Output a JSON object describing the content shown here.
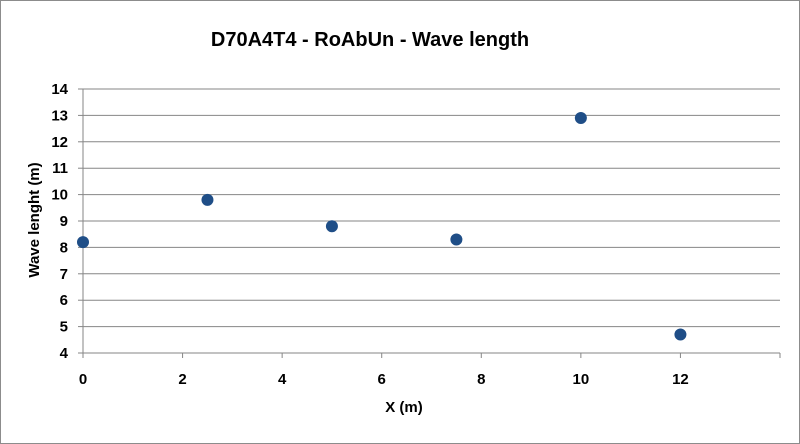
{
  "chart_data": {
    "type": "scatter",
    "title": "D70A4T4  - RoAbUn - Wave length",
    "xlabel": "X (m)",
    "ylabel": "Wave lenght (m)",
    "xlim": [
      0,
      14
    ],
    "ylim": [
      4,
      14
    ],
    "xticks": [
      0,
      2,
      4,
      6,
      8,
      10,
      12
    ],
    "yticks": [
      4,
      5,
      6,
      7,
      8,
      9,
      10,
      11,
      12,
      13,
      14
    ],
    "grid": "horizontal",
    "legend": "none",
    "marker_color": "#1f4e87",
    "series": [
      {
        "x": [
          0,
          2.5,
          5,
          7.5,
          10,
          12
        ],
        "y": [
          8.2,
          9.8,
          8.8,
          8.3,
          12.9,
          4.7
        ]
      }
    ]
  }
}
